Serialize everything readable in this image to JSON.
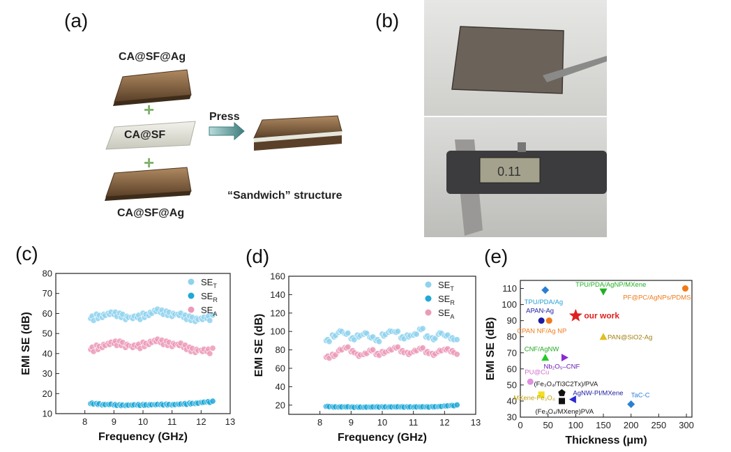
{
  "panel_labels": [
    "(a)",
    "(b)",
    "(c)",
    "(d)",
    "(e)"
  ],
  "schematic": {
    "top_layer": "CA@SF@Ag",
    "middle_layer": "CA@SF",
    "bottom_layer": "CA@SF@Ag",
    "press_label": "Press",
    "result_label": "“Sandwich” structure",
    "colors": {
      "ag_layer": "#8a6a48",
      "sf_layer": "#e2e2da",
      "plus": "#7fb26a",
      "arrow": "#5a8f8f"
    }
  },
  "photos": {
    "photo_top": "sample-held-by-tweezers",
    "photo_bottom": "sample-in-caliper",
    "caliper_reading": "0.11"
  },
  "chart_data": [
    {
      "id": "c",
      "type": "scatter",
      "xlabel": "Frequency (GHz)",
      "ylabel": "EMI SE (dB)",
      "xlim": [
        7,
        13
      ],
      "ylim": [
        10,
        80
      ],
      "xticks": [
        8,
        9,
        10,
        11,
        12,
        13
      ],
      "yticks": [
        10,
        20,
        30,
        40,
        50,
        60,
        70,
        80
      ],
      "grid": false,
      "legend_position": "top-right",
      "x": [
        8.2,
        8.4,
        8.6,
        8.8,
        9.0,
        9.2,
        9.4,
        9.6,
        9.8,
        10.0,
        10.2,
        10.4,
        10.6,
        10.8,
        11.0,
        11.2,
        11.4,
        11.6,
        11.8,
        12.0,
        12.2,
        12.4
      ],
      "series": [
        {
          "name": "SE",
          "subscript": "T",
          "color": "#8fd2ee",
          "values": [
            57.5,
            58.5,
            59,
            59.5,
            59.5,
            59,
            58,
            57.5,
            58,
            59,
            60,
            61,
            60.5,
            60,
            59.5,
            59,
            58,
            57.5,
            57,
            57,
            57.5,
            58
          ]
        },
        {
          "name": "SE",
          "subscript": "R",
          "color": "#1fa8d8",
          "values": [
            15,
            14.8,
            14.5,
            14.5,
            14.3,
            14.2,
            14.2,
            14.2,
            14.3,
            14.3,
            14.4,
            14.4,
            14.5,
            14.5,
            14.5,
            14.6,
            14.8,
            15,
            15.2,
            15.5,
            15.8,
            16
          ]
        },
        {
          "name": "SE",
          "subscript": "A",
          "color": "#ec9ab8",
          "values": [
            42,
            43,
            44,
            44.5,
            45,
            45,
            44,
            43,
            43.5,
            44.5,
            45.5,
            46,
            45.5,
            45,
            44.5,
            44,
            43,
            42,
            41.5,
            41,
            41,
            41.5
          ]
        }
      ]
    },
    {
      "id": "d",
      "type": "scatter",
      "xlabel": "Frequency (GHz)",
      "ylabel": "EMI SE (dB)",
      "xlim": [
        7,
        13
      ],
      "ylim": [
        10,
        160
      ],
      "xticks": [
        8,
        9,
        10,
        11,
        12,
        13
      ],
      "yticks": [
        20,
        40,
        60,
        80,
        100,
        120,
        140,
        160
      ],
      "grid": false,
      "legend_position": "top-right",
      "x": [
        8.2,
        8.4,
        8.6,
        8.8,
        9.0,
        9.2,
        9.4,
        9.6,
        9.8,
        10.0,
        10.2,
        10.4,
        10.6,
        10.8,
        11.0,
        11.2,
        11.4,
        11.6,
        11.8,
        12.0,
        12.2,
        12.4
      ],
      "series": [
        {
          "name": "SE",
          "subscript": "T",
          "color": "#8fd2ee",
          "values": [
            90,
            95,
            100,
            97,
            92,
            95,
            98,
            93,
            90,
            96,
            100,
            99,
            93,
            95,
            97,
            102,
            94,
            92,
            98,
            95,
            92,
            90
          ]
        },
        {
          "name": "SE",
          "subscript": "R",
          "color": "#1fa8d8",
          "values": [
            18.5,
            18,
            18,
            18,
            17.8,
            17.8,
            17.8,
            17.8,
            18,
            18,
            18,
            18,
            18,
            18,
            18,
            18,
            18,
            18.2,
            18.5,
            19,
            19.5,
            20
          ]
        },
        {
          "name": "SE",
          "subscript": "A",
          "color": "#ec9ab8",
          "values": [
            72,
            74,
            80,
            82,
            78,
            74,
            76,
            79,
            75,
            77,
            80,
            82,
            78,
            76,
            79,
            81,
            77,
            75,
            79,
            80,
            78,
            74
          ]
        }
      ]
    },
    {
      "id": "e",
      "type": "scatter",
      "xlabel": "Thickness (μm)",
      "ylabel": "EMI SE (dB)",
      "xlim": [
        0,
        310
      ],
      "ylim": [
        30,
        115
      ],
      "xticks": [
        0,
        50,
        100,
        150,
        200,
        250,
        300
      ],
      "yticks": [
        30,
        40,
        50,
        60,
        70,
        80,
        90,
        100,
        110
      ],
      "grid": false,
      "points": [
        {
          "label": "TPU/PDA/Ag",
          "x": 45,
          "y": 109,
          "color": "#2a7fd4",
          "text_color": "#2a9fd4",
          "marker": "diamond"
        },
        {
          "label": "TPU/PDA/AgNP/MXene",
          "x": 150,
          "y": 108,
          "color": "#22b022",
          "text_color": "#22b022",
          "marker": "triangle-down"
        },
        {
          "label": "PF@PC/AgNPs/PDMS",
          "x": 298,
          "y": 110,
          "color": "#f07a1a",
          "text_color": "#f07a1a",
          "marker": "circle"
        },
        {
          "label": "APAN-Ag",
          "x": 38,
          "y": 90,
          "color": "#1a1aa0",
          "text_color": "#1a1aa0",
          "marker": "circle"
        },
        {
          "label": "CPAN NF/Ag NP",
          "x": 52,
          "y": 90,
          "color": "#f07a1a",
          "text_color": "#f07a1a",
          "marker": "circle"
        },
        {
          "label": "our work",
          "x": 100,
          "y": 93,
          "color": "#e02020",
          "text_color": "#e02020",
          "marker": "star"
        },
        {
          "label": "PAN@SiO2-Ag",
          "x": 150,
          "y": 80,
          "color": "#e0c020",
          "text_color": "#a08010",
          "marker": "triangle-up"
        },
        {
          "label": "CNF/AgNW",
          "x": 45,
          "y": 67,
          "color": "#22cc22",
          "text_color": "#22aa22",
          "marker": "triangle-up"
        },
        {
          "label": "Nb₂O₅–CNF",
          "x": 80,
          "y": 67,
          "color": "#8a2ad4",
          "text_color": "#6a1ab4",
          "marker": "triangle-right"
        },
        {
          "label": "PU@Cu",
          "x": 18,
          "y": 52,
          "color": "#e090e0",
          "text_color": "#d070d0",
          "marker": "circle"
        },
        {
          "label": "(Fe₃O₄/Ti3C2Tx)/PVA",
          "x": 75,
          "y": 45,
          "color": "#111111",
          "text_color": "#111111",
          "marker": "pentagon"
        },
        {
          "label": "AgNW-PI/MXene",
          "x": 95,
          "y": 41,
          "color": "#2a2ad4",
          "text_color": "#1a1aa0",
          "marker": "triangle-left"
        },
        {
          "label": "(Fe₃O₄/MXene)PVA",
          "x": 75,
          "y": 40,
          "color": "#111111",
          "text_color": "#111111",
          "marker": "square"
        },
        {
          "label": "MXene-Fe₃O₄",
          "x": 38,
          "y": 44,
          "color": "#f0e020",
          "text_color": "#c0a010",
          "marker": "square"
        },
        {
          "label": "TaC-C",
          "x": 200,
          "y": 38,
          "color": "#2a7fd4",
          "text_color": "#2a7fd4",
          "marker": "diamond"
        }
      ]
    }
  ]
}
